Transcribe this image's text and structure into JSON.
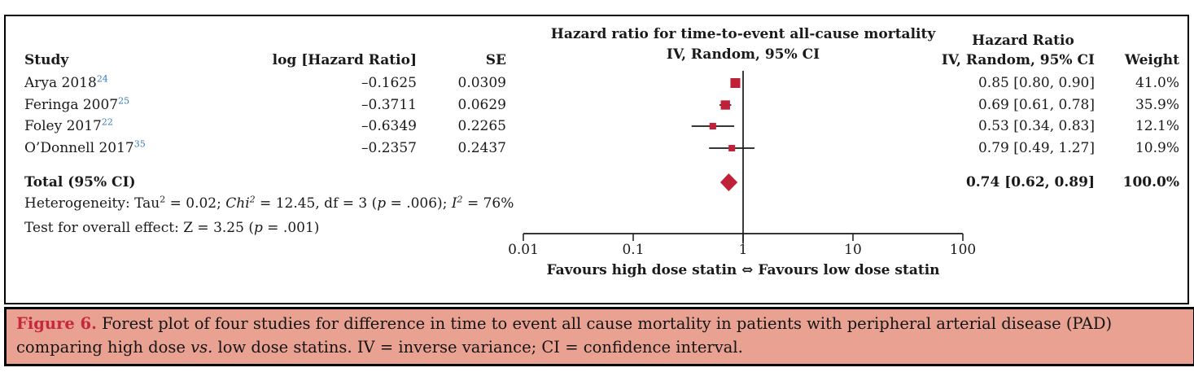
{
  "colors": {
    "marker_red": "#be2138",
    "ink": "#1a1a1a",
    "ref_blue": "#3579b8",
    "caption_bg": "#e9a192",
    "caption_label_red": "#c5293e",
    "border_black": "#000000"
  },
  "table": {
    "headers": {
      "study": "Study",
      "log_hr": "log [Hazard Ratio]",
      "se": "SE",
      "hr_title": "Hazard Ratio",
      "iv_random": "IV, Random, 95% CI",
      "weight": "Weight"
    },
    "plot_title_line1": "Hazard ratio for time-to-event all-cause mortality",
    "plot_title_line2": "IV, Random, 95% CI",
    "rows": [
      {
        "study": "Arya 2018",
        "ref": "24",
        "log_hr": "–0.1625",
        "se": "0.0309",
        "hr_ci": "0.85 [0.80, 0.90]",
        "weight": "41.0%"
      },
      {
        "study": "Feringa 2007",
        "ref": "25",
        "log_hr": "–0.3711",
        "se": "0.0629",
        "hr_ci": "0.69 [0.61, 0.78]",
        "weight": "35.9%"
      },
      {
        "study": "Foley 2017",
        "ref": "22",
        "log_hr": "–0.6349",
        "se": "0.2265",
        "hr_ci": "0.53 [0.34, 0.83]",
        "weight": "12.1%"
      },
      {
        "study": "O’Donnell 2017",
        "ref": "35",
        "log_hr": "–0.2357",
        "se": "0.2437",
        "hr_ci": "0.79 [0.49, 1.27]",
        "weight": "10.9%"
      }
    ],
    "total_label": "Total (95% CI)",
    "total_hr_ci": "0.74 [0.62, 0.89]",
    "total_weight": "100.0%",
    "heterogeneity": [
      {
        "t": "Heterogeneity: Tau"
      },
      {
        "t": "2",
        "sup": true
      },
      {
        "t": " = 0.02; "
      },
      {
        "t": "Chi",
        "i": true
      },
      {
        "t": "2",
        "sup": true,
        "i": true
      },
      {
        "t": " = 12.45, df = 3 ("
      },
      {
        "t": "p",
        "i": true
      },
      {
        "t": " = .006); "
      },
      {
        "t": "I",
        "i": true
      },
      {
        "t": "2",
        "sup": true,
        "i": true
      },
      {
        "t": " = 76%"
      }
    ],
    "overall_effect": [
      {
        "t": "Test for overall effect: Z = 3.25 ("
      },
      {
        "t": "p",
        "i": true
      },
      {
        "t": " = .001)"
      }
    ],
    "favours_label": "Favours high dose statin  ⇔  Favours low dose statin"
  },
  "chart_data": {
    "type": "forest",
    "x_scale": "log10",
    "axis_ticks": [
      0.01,
      0.1,
      1,
      10,
      100
    ],
    "axis_tick_labels": [
      "0.01",
      "0.1",
      "1",
      "10",
      "100"
    ],
    "null_line": 1,
    "xlabel": "Favours high dose statin ⇔ Favours low dose statin",
    "title": "Hazard ratio for time-to-event all-cause mortality, IV, Random, 95% CI",
    "studies": [
      {
        "name": "Arya 2018",
        "ref": "24",
        "log_hr": -0.1625,
        "se": 0.0309,
        "hr": 0.85,
        "ci_low": 0.8,
        "ci_high": 0.9,
        "weight_pct": 41.0
      },
      {
        "name": "Feringa 2007",
        "ref": "25",
        "log_hr": -0.3711,
        "se": 0.0629,
        "hr": 0.69,
        "ci_low": 0.61,
        "ci_high": 0.78,
        "weight_pct": 35.9
      },
      {
        "name": "Foley 2017",
        "ref": "22",
        "log_hr": -0.6349,
        "se": 0.2265,
        "hr": 0.53,
        "ci_low": 0.34,
        "ci_high": 0.83,
        "weight_pct": 12.1
      },
      {
        "name": "O’Donnell 2017",
        "ref": "35",
        "log_hr": -0.2357,
        "se": 0.2437,
        "hr": 0.79,
        "ci_low": 0.49,
        "ci_high": 1.27,
        "weight_pct": 10.9
      }
    ],
    "total": {
      "label": "Total (95% CI)",
      "hr": 0.74,
      "ci_low": 0.62,
      "ci_high": 0.89,
      "weight_pct": 100.0
    },
    "heterogeneity": {
      "tau2": 0.02,
      "chi2": 12.45,
      "df": 3,
      "p": 0.006,
      "i2_pct": 76
    },
    "overall_effect": {
      "z": 3.25,
      "p": 0.001
    }
  },
  "caption": [
    {
      "t": "Figure 6.",
      "b": true,
      "c": "#c5293e"
    },
    {
      "t": " Forest plot of four studies for difference in time to event all cause mortality in patients with peripheral arterial disease (PAD)"
    },
    {
      "br": true
    },
    {
      "t": "comparing high dose "
    },
    {
      "t": "vs.",
      "i": true
    },
    {
      "t": " low dose statins. IV = inverse variance; CI = confidence interval."
    }
  ]
}
